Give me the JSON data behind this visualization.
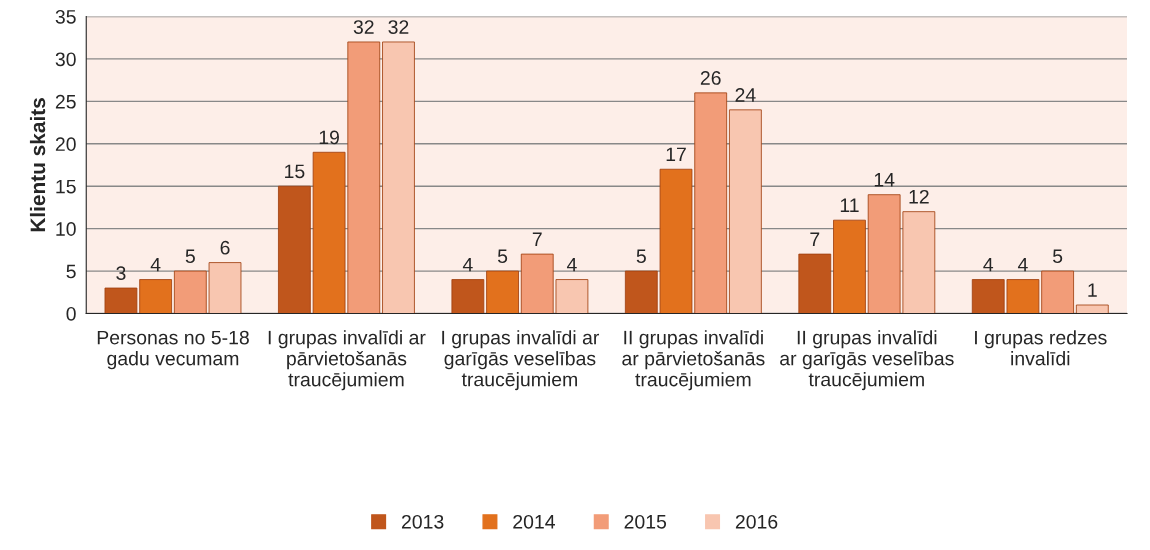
{
  "chart_data": {
    "type": "bar",
    "ylabel": "Klientu skaits",
    "categories": [
      "Personas no 5-18 gadu vecumam",
      "I grupas invalīdi ar pārvietošanās traucējumiem",
      "I grupas invalīdi ar garīgās veselības traucējumiem",
      "II grupas invalīdi ar pārvietošanās traucējumiem",
      "II grupas invalīdi ar garīgās veselības traucējumiem",
      "I grupas redzes invalīdi"
    ],
    "series": [
      {
        "name": "2013",
        "color": "#c0561c",
        "values": [
          3,
          15,
          4,
          5,
          7,
          4
        ]
      },
      {
        "name": "2014",
        "color": "#e2711d",
        "values": [
          4,
          19,
          5,
          17,
          11,
          4
        ]
      },
      {
        "name": "2015",
        "color": "#f29c78",
        "values": [
          5,
          32,
          7,
          26,
          14,
          5
        ]
      },
      {
        "name": "2016",
        "color": "#f8c6b0",
        "values": [
          6,
          32,
          4,
          24,
          12,
          1
        ]
      }
    ],
    "ylim": [
      0,
      35
    ],
    "yticks": [
      0,
      5,
      10,
      15,
      20,
      25,
      30,
      35
    ],
    "grid": "y",
    "legend": "bottom",
    "data_labels": true
  }
}
